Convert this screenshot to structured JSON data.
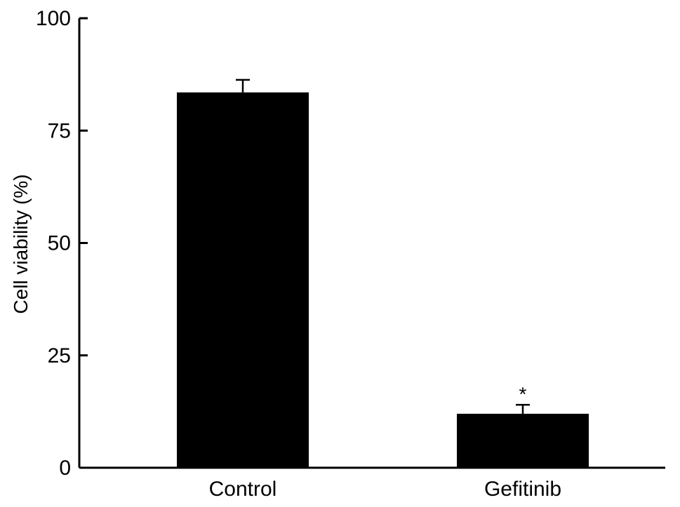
{
  "chart_data": {
    "type": "bar",
    "categories": [
      "Control",
      "Gefitinib"
    ],
    "values": [
      83.5,
      12.0
    ],
    "errors": [
      2.8,
      2.0
    ],
    "annotations": [
      "",
      "*"
    ],
    "ylabel": "Cell viability (%)",
    "xlabel": "",
    "ylim": [
      0,
      100
    ],
    "yticks": [
      0,
      25,
      50,
      75,
      100
    ],
    "grid": false,
    "legend": "none",
    "bar_color": "#000000",
    "axis_color": "#000000"
  }
}
